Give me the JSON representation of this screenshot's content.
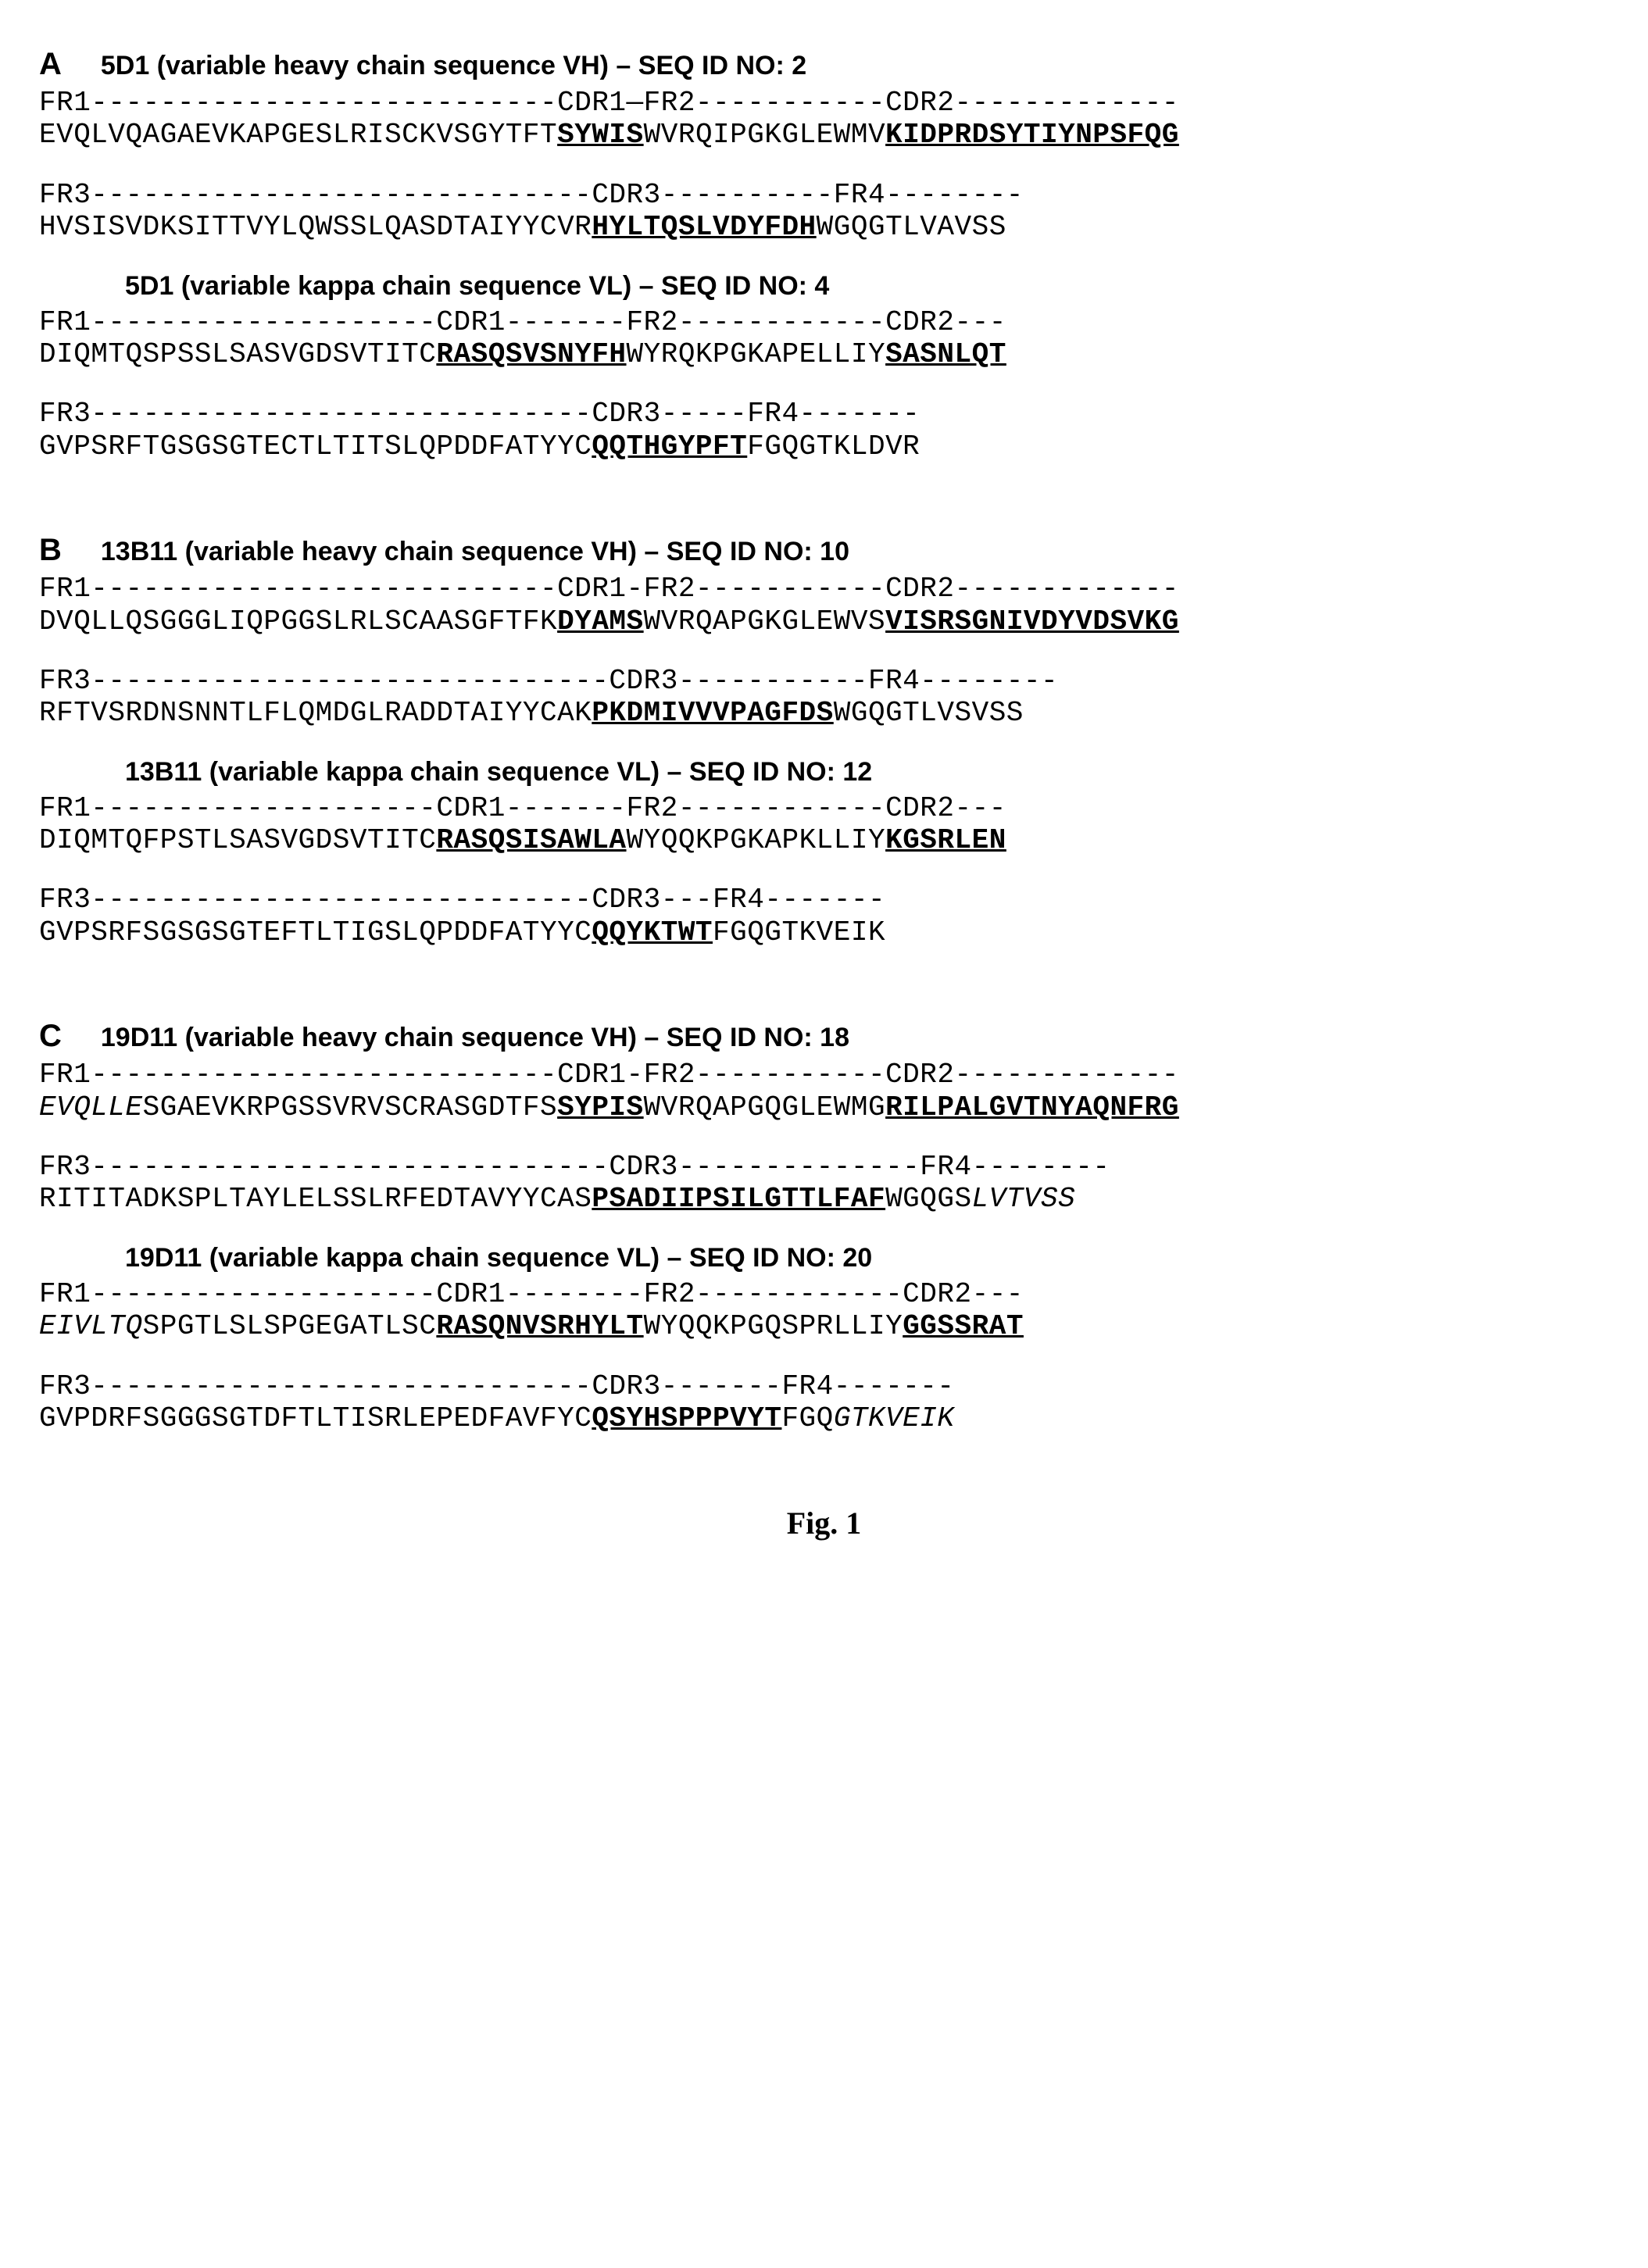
{
  "sectionA": {
    "letter": "A",
    "vh_title": "5D1 (variable heavy chain sequence VH) – SEQ ID NO: 2",
    "vh_region1": "FR1---------------------------CDR1—FR2-----------CDR2-------------",
    "vh_seq1_pre": "EVQLVQAGAEVKAPGESLRISCKVSGYTFT",
    "vh_seq1_cdr1": "SYWIS",
    "vh_seq1_mid": "WVRQIPGKGLEWMV",
    "vh_seq1_cdr2": "KIDPRDSYTIYNPSFQG",
    "vh_region2": "FR3-----------------------------CDR3----------FR4--------",
    "vh_seq2_pre": "HVSISVDKSITTVYLQWSSLQASDTAIYYCVR",
    "vh_seq2_cdr3": "HYLTQSLVDYFDH",
    "vh_seq2_post": "WGQGTLVAVSS",
    "vl_title": "5D1 (variable kappa chain sequence VL) – SEQ ID NO: 4",
    "vl_region1": "FR1--------------------CDR1-------FR2------------CDR2---",
    "vl_seq1_pre": "DIQMTQSPSSLSASVGDSVTITC",
    "vl_seq1_cdr1": "RASQSVSNYFH",
    "vl_seq1_mid": "WYRQKPGKAPELLIY",
    "vl_seq1_cdr2": "SASNLQT",
    "vl_region2": "FR3-----------------------------CDR3-----FR4-------",
    "vl_seq2_pre": "GVPSRFTGSGSGTECTLTITSLQPDDFATYYC",
    "vl_seq2_cdr3": "QQTHGYPFT",
    "vl_seq2_post": "FGQGTKLDVR"
  },
  "sectionB": {
    "letter": "B",
    "vh_title": "13B11 (variable heavy chain sequence VH)  – SEQ ID NO: 10",
    "vh_region1": "FR1---------------------------CDR1-FR2-----------CDR2-------------",
    "vh_seq1_pre": "DVQLLQSGGGLIQPGGSLRLSCAASGFTFK",
    "vh_seq1_cdr1": "DYAMS",
    "vh_seq1_mid": "WVRQAPGKGLEWVS",
    "vh_seq1_cdr2": "VISRSGNIVDYVDSVKG",
    "vh_region2": "FR3------------------------------CDR3-----------FR4--------",
    "vh_seq2_pre": "RFTVSRDNSNNTLFLQMDGLRADDTAIYYCAK",
    "vh_seq2_cdr3": "PKDMIVVVPAGFDS",
    "vh_seq2_post": "WGQGTLVSVSS",
    "vl_title": "13B11 (variable kappa chain sequence VL)  – SEQ ID NO: 12",
    "vl_region1": "FR1--------------------CDR1-------FR2------------CDR2---",
    "vl_seq1_pre": "DIQMTQFPSTLSASVGDSVTITC",
    "vl_seq1_cdr1": "RASQSISAWLA",
    "vl_seq1_mid": "WYQQKPGKAPKLLIY",
    "vl_seq1_cdr2": "KGSRLEN",
    "vl_region2": "FR3-----------------------------CDR3---FR4-------",
    "vl_seq2_pre": "GVPSRFSGSGSGTEFTLTIGSLQPDDFATYYC",
    "vl_seq2_cdr3": "QQYKTWT",
    "vl_seq2_post": "FGQGTKVEIK"
  },
  "sectionC": {
    "letter": "C",
    "vh_title": "19D11 (variable heavy chain sequence VH)  – SEQ ID NO: 18",
    "vh_region1": "FR1---------------------------CDR1-FR2-----------CDR2-------------",
    "vh_seq1_italic_pre": "EVQLLE",
    "vh_seq1_pre": "SGAEVKRPGSSVRVSCRASGDTFS",
    "vh_seq1_cdr1": "SYPIS",
    "vh_seq1_mid": "WVRQAPGQGLEWMG",
    "vh_seq1_cdr2": "RILPALGVTNYAQNFRG",
    "vh_region2": "FR3------------------------------CDR3--------------FR4--------",
    "vh_seq2_pre": "RITITADKSPLTAYLELSSLRFEDTAVYYCAS",
    "vh_seq2_cdr3": "PSADIIPSILGTTLFAF",
    "vh_seq2_post": "WGQGS",
    "vh_seq2_italic_post": "LVTVSS",
    "vl_title": "19D11 (variable kappa chain sequence VL)  – SEQ ID NO: 20",
    "vl_region1": "FR1--------------------CDR1--------FR2------------CDR2---",
    "vl_seq1_italic_pre": "EIVLTQ",
    "vl_seq1_pre": "SPGTLSLSPGEGATLSC",
    "vl_seq1_cdr1": "RASQNVSRHYLT",
    "vl_seq1_mid": "WYQQKPGQSPRLLIY",
    "vl_seq1_cdr2": "GGSSRAT",
    "vl_region2": "FR3-----------------------------CDR3-------FR4-------",
    "vl_seq2_pre": "GVPDRFSGGGSGTDFTLTISRLEPEDFAVFYC",
    "vl_seq2_cdr3": "QSYHSPPPVYT",
    "vl_seq2_post": "FGQ",
    "vl_seq2_italic_post": "GTKVEIK"
  },
  "figure_label": "Fig. 1"
}
